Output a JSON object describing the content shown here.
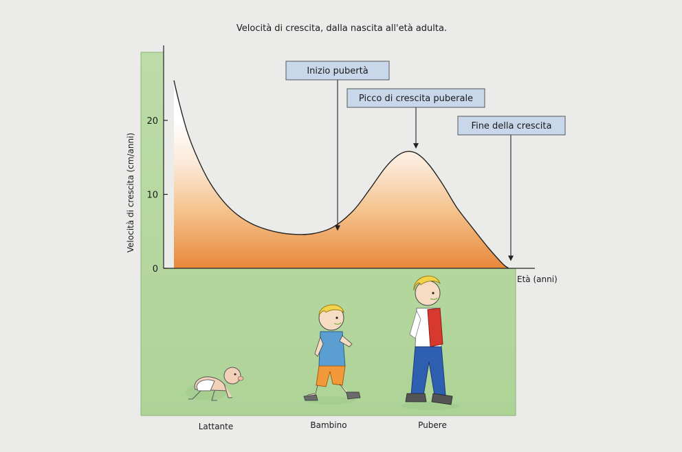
{
  "chart_data": {
    "type": "area",
    "title": "Velocità di crescita, dalla nascita all'età adulta.",
    "ylabel": "Velocità di crescita (cm/anni)",
    "xlabel": "Età (anni)",
    "ylim": [
      0,
      25
    ],
    "y_ticks": [
      "0",
      "10",
      "20"
    ],
    "y_tick_values": [
      0,
      10,
      20
    ],
    "grid": false,
    "series": [
      {
        "points": [
          [
            0.0,
            25.4
          ],
          [
            0.3,
            22.0
          ],
          [
            0.7,
            18.2
          ],
          [
            1.2,
            14.8
          ],
          [
            1.8,
            11.6
          ],
          [
            2.5,
            9.0
          ],
          [
            3.2,
            7.2
          ],
          [
            4.0,
            5.9
          ],
          [
            5.0,
            5.0
          ],
          [
            6.0,
            4.6
          ],
          [
            7.0,
            4.7
          ],
          [
            8.0,
            5.6
          ],
          [
            9.0,
            7.8
          ],
          [
            9.8,
            10.6
          ],
          [
            10.6,
            13.6
          ],
          [
            11.2,
            15.2
          ],
          [
            11.7,
            15.8
          ],
          [
            12.2,
            15.5
          ],
          [
            12.8,
            14.0
          ],
          [
            13.5,
            11.3
          ],
          [
            14.2,
            8.2
          ],
          [
            15.0,
            5.4
          ],
          [
            15.8,
            2.7
          ],
          [
            16.5,
            0.6
          ],
          [
            16.8,
            0.0
          ]
        ]
      }
    ],
    "annotations": [
      {
        "label": "Inizio pubertà",
        "x": 7.0,
        "y": 4.7
      },
      {
        "label": "Picco di crescita puberale",
        "x": 11.7,
        "y": 15.8
      },
      {
        "label": "Fine della crescita",
        "x": 16.5,
        "y": 0.6
      }
    ]
  },
  "figures": [
    {
      "label": "Lattante",
      "icon": "crawling-baby-illustration"
    },
    {
      "label": "Bambino",
      "icon": "walking-child-illustration"
    },
    {
      "label": "Pubere",
      "icon": "walking-teen-illustration"
    }
  ],
  "colors": {
    "panel_green": "#b5d89e",
    "fill_top": "#ffffff",
    "fill_mid": "#f7c99a",
    "fill_bottom": "#e8883a",
    "label_box": "#c8d7ea",
    "line": "#222222"
  }
}
